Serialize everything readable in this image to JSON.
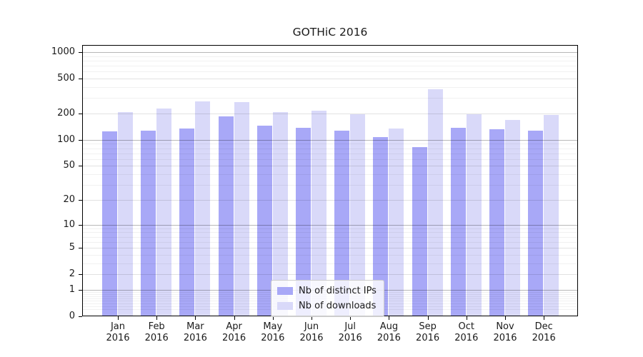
{
  "title": "GOTHiC 2016",
  "chart_data": {
    "type": "bar",
    "title": "GOTHiC 2016",
    "scale_y": "symlog ln(1+x)",
    "categories": [
      "Jan",
      "Feb",
      "Mar",
      "Apr",
      "May",
      "Jun",
      "Jul",
      "Aug",
      "Sep",
      "Oct",
      "Nov",
      "Dec"
    ],
    "category_year": "2016",
    "series": [
      {
        "name": "Nb of distinct IPs",
        "color": "#a8a8f7",
        "values": [
          125,
          127,
          134,
          187,
          145,
          137,
          127,
          107,
          82,
          137,
          132,
          127
        ]
      },
      {
        "name": "Nb of downloads",
        "color": "#d9d9f9",
        "values": [
          207,
          228,
          275,
          269,
          207,
          214,
          195,
          134,
          380,
          196,
          170,
          194
        ]
      }
    ],
    "yticks": [
      0,
      1,
      2,
      5,
      10,
      20,
      50,
      100,
      200,
      500,
      1000
    ],
    "ytick_labels": [
      "0",
      "1",
      "2",
      "5",
      "10",
      "20",
      "50",
      "100",
      "200",
      "500",
      "1000"
    ],
    "ylim": [
      0,
      1200
    ],
    "xlabel": "",
    "ylabel": "",
    "grid": true,
    "legend_position": "lower center",
    "colors": {
      "background": "#ffffff",
      "spine": "#000000",
      "grid_decade": "rgba(0,0,0,0.28)",
      "grid_labeled": "rgba(0,0,0,0.115)",
      "grid_minor": "rgba(0,0,0,0.055)",
      "text": "#1a1a1a",
      "legend_border": "#cccccc"
    }
  },
  "legend": {
    "items": [
      {
        "label": "Nb of distinct IPs",
        "color": "#a8a8f7"
      },
      {
        "label": "Nb of downloads",
        "color": "#d9d9f9"
      }
    ]
  }
}
